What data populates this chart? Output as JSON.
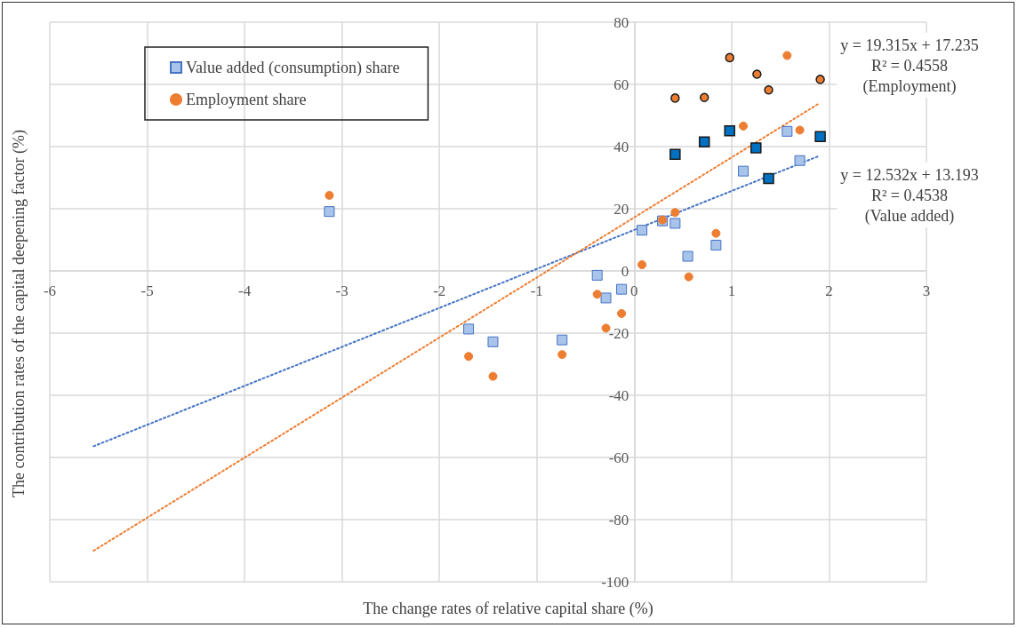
{
  "chart_data": {
    "type": "scatter",
    "xlabel": "The change rates of relative capital share (%)",
    "ylabel": "The contribution rates of the capital deepening factor (%)",
    "xlim": [
      -6,
      3
    ],
    "xticks": [
      -6,
      -5,
      -4,
      -3,
      -2,
      -1,
      0,
      1,
      2,
      3
    ],
    "ylim": [
      -100,
      80
    ],
    "yticks": [
      -100,
      -80,
      -60,
      -40,
      -20,
      0,
      20,
      40,
      60,
      80
    ],
    "grid": true,
    "legend": "top left",
    "annotations": [
      "y = 19.315x + 17.235\nR² = 0.4558\n(Employment)",
      "y = 12.532x + 13.193\nR² = 0.4538\n(Value added)"
    ],
    "series": [
      {
        "name": "Value added (consumption) share",
        "color": "#a9c4eb",
        "marker": "square",
        "x": [
          -3.13,
          -1.7,
          -1.45,
          -0.74,
          -0.38,
          -0.29,
          -0.13,
          0.08,
          0.29,
          0.42,
          0.55,
          0.84,
          1.12,
          1.57,
          1.7
        ],
        "values": [
          19.1,
          -18.7,
          -22.8,
          -22.2,
          -1.4,
          -8.7,
          -5.9,
          13.1,
          16.1,
          15.3,
          4.7,
          8.3,
          32.1,
          44.9,
          35.5
        ]
      },
      {
        "name": "Employment share",
        "color": "#ed7d31",
        "marker": "circle",
        "x": [
          -3.13,
          -1.7,
          -1.45,
          -0.74,
          -0.38,
          -0.29,
          -0.13,
          0.08,
          0.29,
          0.42,
          0.56,
          0.84,
          1.12,
          1.57,
          1.7
        ],
        "values": [
          24.3,
          -27.5,
          -33.9,
          -26.9,
          -7.5,
          -18.4,
          -13.7,
          2.0,
          16.4,
          18.8,
          -1.9,
          12.1,
          46.6,
          69.3,
          45.3
        ]
      },
      {
        "color": "#0070c0",
        "marker": "square",
        "x": [
          0.42,
          0.72,
          0.98,
          1.25,
          1.38,
          1.91
        ],
        "values": [
          37.5,
          41.5,
          45.1,
          39.6,
          29.7,
          43.2
        ]
      },
      {
        "color": "#ed7d31",
        "marker": "circle",
        "x": [
          0.42,
          0.72,
          0.98,
          1.26,
          1.38,
          1.91
        ],
        "values": [
          55.6,
          55.8,
          68.6,
          63.3,
          58.2,
          61.6
        ]
      },
      {
        "type": "line",
        "color": "#4472c4",
        "marker": "none",
        "line_style": "dotted",
        "x": [
          -5.55,
          1.9
        ],
        "values": [
          -56.4,
          37.0
        ]
      },
      {
        "type": "line",
        "color": "#ed7d31",
        "marker": "none",
        "line_style": "dotted",
        "x": [
          -5.55,
          1.9
        ],
        "values": [
          -90.0,
          53.9
        ]
      }
    ]
  }
}
